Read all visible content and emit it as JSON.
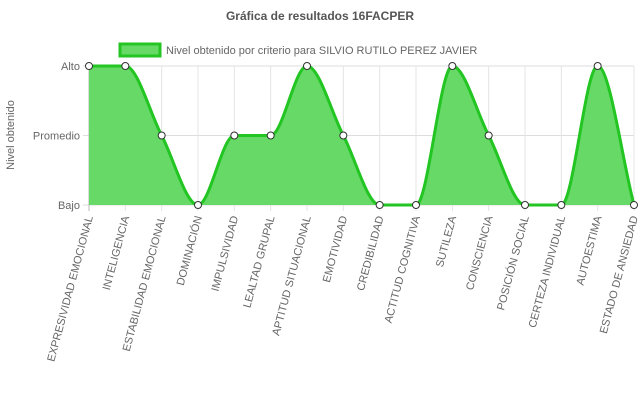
{
  "chart_data": {
    "type": "line",
    "title": "Gráfica de resultados 16FACPER",
    "y_label": "Nivel obtenido",
    "categories": [
      "EXPRESIVIDAD EMOCIONAL",
      "INTELIGENCIA",
      "ESTABILIDAD EMOCIONAL",
      "DOMINACIÓN",
      "IMPULSIVIDAD",
      "LEALTAD GRUPAL",
      "APTITUD SITUACIONAL",
      "EMOTIVIDAD",
      "CREDIBILIDAD",
      "ACTITUD COGNITIVA",
      "SUTILEZA",
      "CONSCIENCIA",
      "POSICIÓN SOCIAL",
      "CERTEZA INDIVIDUAL",
      "AUTOESTIMA",
      "ESTADO DE ANSIEDAD"
    ],
    "series": [
      {
        "name": "Nivel obtenido por criterio para SILVIO RUTILO PEREZ JAVIER",
        "color": "#22c522",
        "fill": "#66d966",
        "values": [
          3,
          3,
          2,
          1,
          2,
          2,
          3,
          2,
          1,
          1,
          3,
          2,
          1,
          1,
          3,
          1
        ]
      }
    ],
    "ylim": [
      1,
      3
    ],
    "yticks": [
      {
        "value": 1,
        "label": "Bajo"
      },
      {
        "value": 2,
        "label": "Promedio"
      },
      {
        "value": 3,
        "label": "Alto"
      }
    ],
    "grid": true,
    "legend": "top"
  }
}
